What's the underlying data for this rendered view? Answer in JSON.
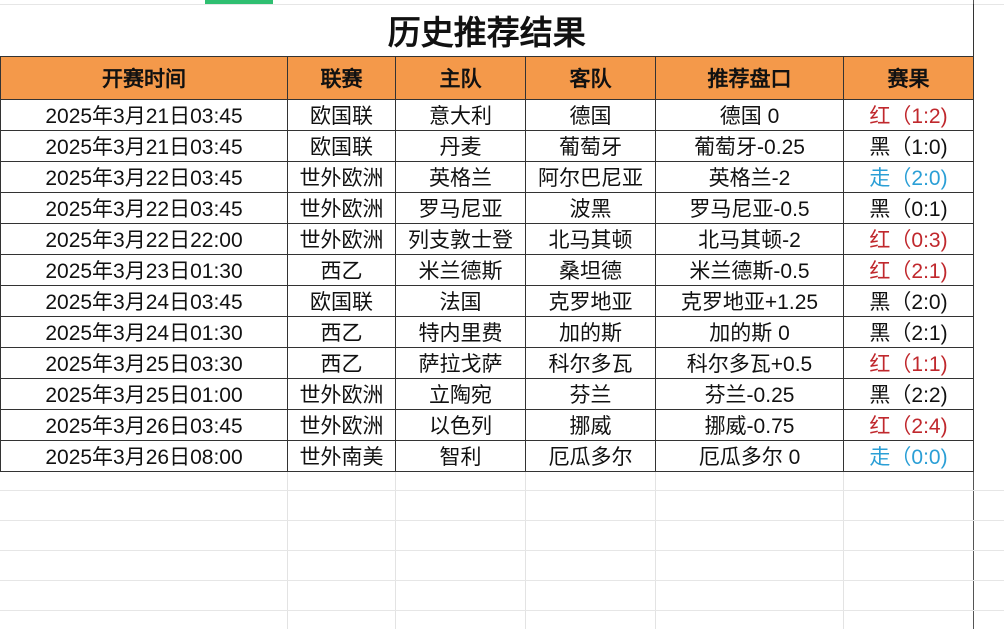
{
  "title": "历史推荐结果",
  "columns": [
    "开赛时间",
    "联赛",
    "主队",
    "客队",
    "推荐盘口",
    "赛果"
  ],
  "result_colors": {
    "红": "#c0282d",
    "黑": "#111111",
    "走": "#2b9fd6"
  },
  "header_color": "#f4994a",
  "rows": [
    {
      "time": "2025年3月21日03:45",
      "league": "欧国联",
      "home": "意大利",
      "away": "德国",
      "pick": "德国 0",
      "result": "红（1:2)",
      "status": "红"
    },
    {
      "time": "2025年3月21日03:45",
      "league": "欧国联",
      "home": "丹麦",
      "away": "葡萄牙",
      "pick": "葡萄牙-0.25",
      "result": "黑（1:0)",
      "status": "黑"
    },
    {
      "time": "2025年3月22日03:45",
      "league": "世外欧洲",
      "home": "英格兰",
      "away": "阿尔巴尼亚",
      "pick": "英格兰-2",
      "result": "走（2:0)",
      "status": "走"
    },
    {
      "time": "2025年3月22日03:45",
      "league": "世外欧洲",
      "home": "罗马尼亚",
      "away": "波黑",
      "pick": "罗马尼亚-0.5",
      "result": "黑（0:1)",
      "status": "黑"
    },
    {
      "time": "2025年3月22日22:00",
      "league": "世外欧洲",
      "home": "列支敦士登",
      "away": "北马其顿",
      "pick": "北马其顿-2",
      "result": "红（0:3)",
      "status": "红"
    },
    {
      "time": "2025年3月23日01:30",
      "league": "西乙",
      "home": "米兰德斯",
      "away": "桑坦德",
      "pick": "米兰德斯-0.5",
      "result": "红（2:1)",
      "status": "红"
    },
    {
      "time": "2025年3月24日03:45",
      "league": "欧国联",
      "home": "法国",
      "away": "克罗地亚",
      "pick": "克罗地亚+1.25",
      "result": "黑（2:0)",
      "status": "黑"
    },
    {
      "time": "2025年3月24日01:30",
      "league": "西乙",
      "home": "特内里费",
      "away": "加的斯",
      "pick": "加的斯 0",
      "result": "黑（2:1)",
      "status": "黑"
    },
    {
      "time": "2025年3月25日03:30",
      "league": "西乙",
      "home": "萨拉戈萨",
      "away": "科尔多瓦",
      "pick": "科尔多瓦+0.5",
      "result": "红（1:1)",
      "status": "红"
    },
    {
      "time": "2025年3月25日01:00",
      "league": "世外欧洲",
      "home": "立陶宛",
      "away": "芬兰",
      "pick": "芬兰-0.25",
      "result": "黑（2:2)",
      "status": "黑"
    },
    {
      "time": "2025年3月26日03:45",
      "league": "世外欧洲",
      "home": "以色列",
      "away": "挪威",
      "pick": "挪威-0.75",
      "result": "红（2:4)",
      "status": "红"
    },
    {
      "time": "2025年3月26日08:00",
      "league": "世外南美",
      "home": "智利",
      "away": "厄瓜多尔",
      "pick": "厄瓜多尔 0",
      "result": "走（0:0)",
      "status": "走"
    }
  ]
}
